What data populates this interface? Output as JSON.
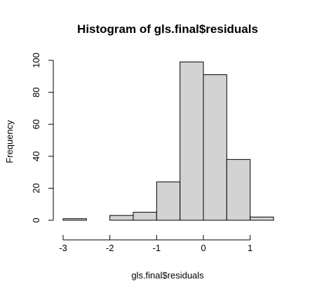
{
  "chart_data": {
    "type": "bar",
    "title": "Histogram of gls.final$residuals",
    "xlabel": "gls.final$residuals",
    "ylabel": "Frequency",
    "bin_edges": [
      -3.0,
      -2.5,
      -2.0,
      -1.5,
      -1.0,
      -0.5,
      0.0,
      0.5,
      1.0,
      1.5
    ],
    "values": [
      1,
      0,
      3,
      5,
      24,
      99,
      91,
      38,
      2
    ],
    "xlim": [
      -3.0,
      1.5
    ],
    "ylim": [
      0,
      100
    ],
    "x_ticks": [
      -3,
      -2,
      -1,
      0,
      1
    ],
    "x_tick_labels": [
      "-3",
      "-2",
      "-1",
      "0",
      "1"
    ],
    "y_ticks": [
      0,
      20,
      40,
      60,
      80,
      100
    ],
    "y_tick_labels": [
      "0",
      "20",
      "40",
      "60",
      "80",
      "100"
    ],
    "bar_fill": "#d3d3d3",
    "bar_stroke": "#000000",
    "grid": false,
    "legend": "none"
  }
}
